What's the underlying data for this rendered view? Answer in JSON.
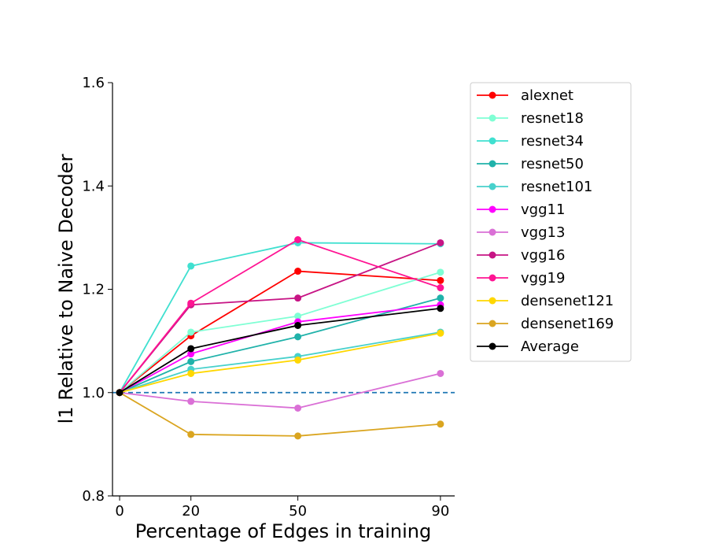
{
  "chart_data": {
    "type": "line",
    "title": "",
    "xlabel": "Percentage of Edges in training",
    "ylabel": "l1 Relative to Naive Decoder",
    "x": [
      0,
      20,
      50,
      90
    ],
    "xticks": [
      "0",
      "20",
      "50",
      "90"
    ],
    "yticks": [
      "0.8",
      "1.0",
      "1.2",
      "1.4",
      "1.6"
    ],
    "ylim": [
      0.8,
      1.6
    ],
    "xlim": [
      -2,
      94
    ],
    "reference_line": {
      "y": 1.0,
      "style": "dashed",
      "color": "#1f77b4"
    },
    "legend_position": "outside-right",
    "series": [
      {
        "name": "alexnet",
        "color": "#ff0000",
        "values": [
          1.0,
          1.11,
          1.235,
          1.217
        ]
      },
      {
        "name": "resnet18",
        "color": "#7fffd4",
        "values": [
          1.0,
          1.117,
          1.148,
          1.233
        ]
      },
      {
        "name": "resnet34",
        "color": "#40e0d0",
        "values": [
          1.0,
          1.245,
          1.29,
          1.288
        ]
      },
      {
        "name": "resnet50",
        "color": "#20b2aa",
        "values": [
          1.0,
          1.06,
          1.108,
          1.183
        ]
      },
      {
        "name": "resnet101",
        "color": "#48d1cc",
        "values": [
          1.0,
          1.045,
          1.07,
          1.117
        ]
      },
      {
        "name": "vgg11",
        "color": "#ff00ff",
        "values": [
          1.0,
          1.075,
          1.137,
          1.17
        ]
      },
      {
        "name": "vgg13",
        "color": "#da70d6",
        "values": [
          1.0,
          0.983,
          0.97,
          1.037
        ]
      },
      {
        "name": "vgg16",
        "color": "#c71585",
        "values": [
          1.0,
          1.17,
          1.183,
          1.29
        ]
      },
      {
        "name": "vgg19",
        "color": "#ff1493",
        "values": [
          1.0,
          1.173,
          1.296,
          1.203
        ]
      },
      {
        "name": "densenet121",
        "color": "#ffd700",
        "values": [
          1.0,
          1.037,
          1.063,
          1.115
        ]
      },
      {
        "name": "densenet169",
        "color": "#daa520",
        "values": [
          1.0,
          0.919,
          0.916,
          0.939
        ]
      },
      {
        "name": "Average",
        "color": "#000000",
        "values": [
          1.0,
          1.085,
          1.13,
          1.163
        ]
      }
    ]
  }
}
